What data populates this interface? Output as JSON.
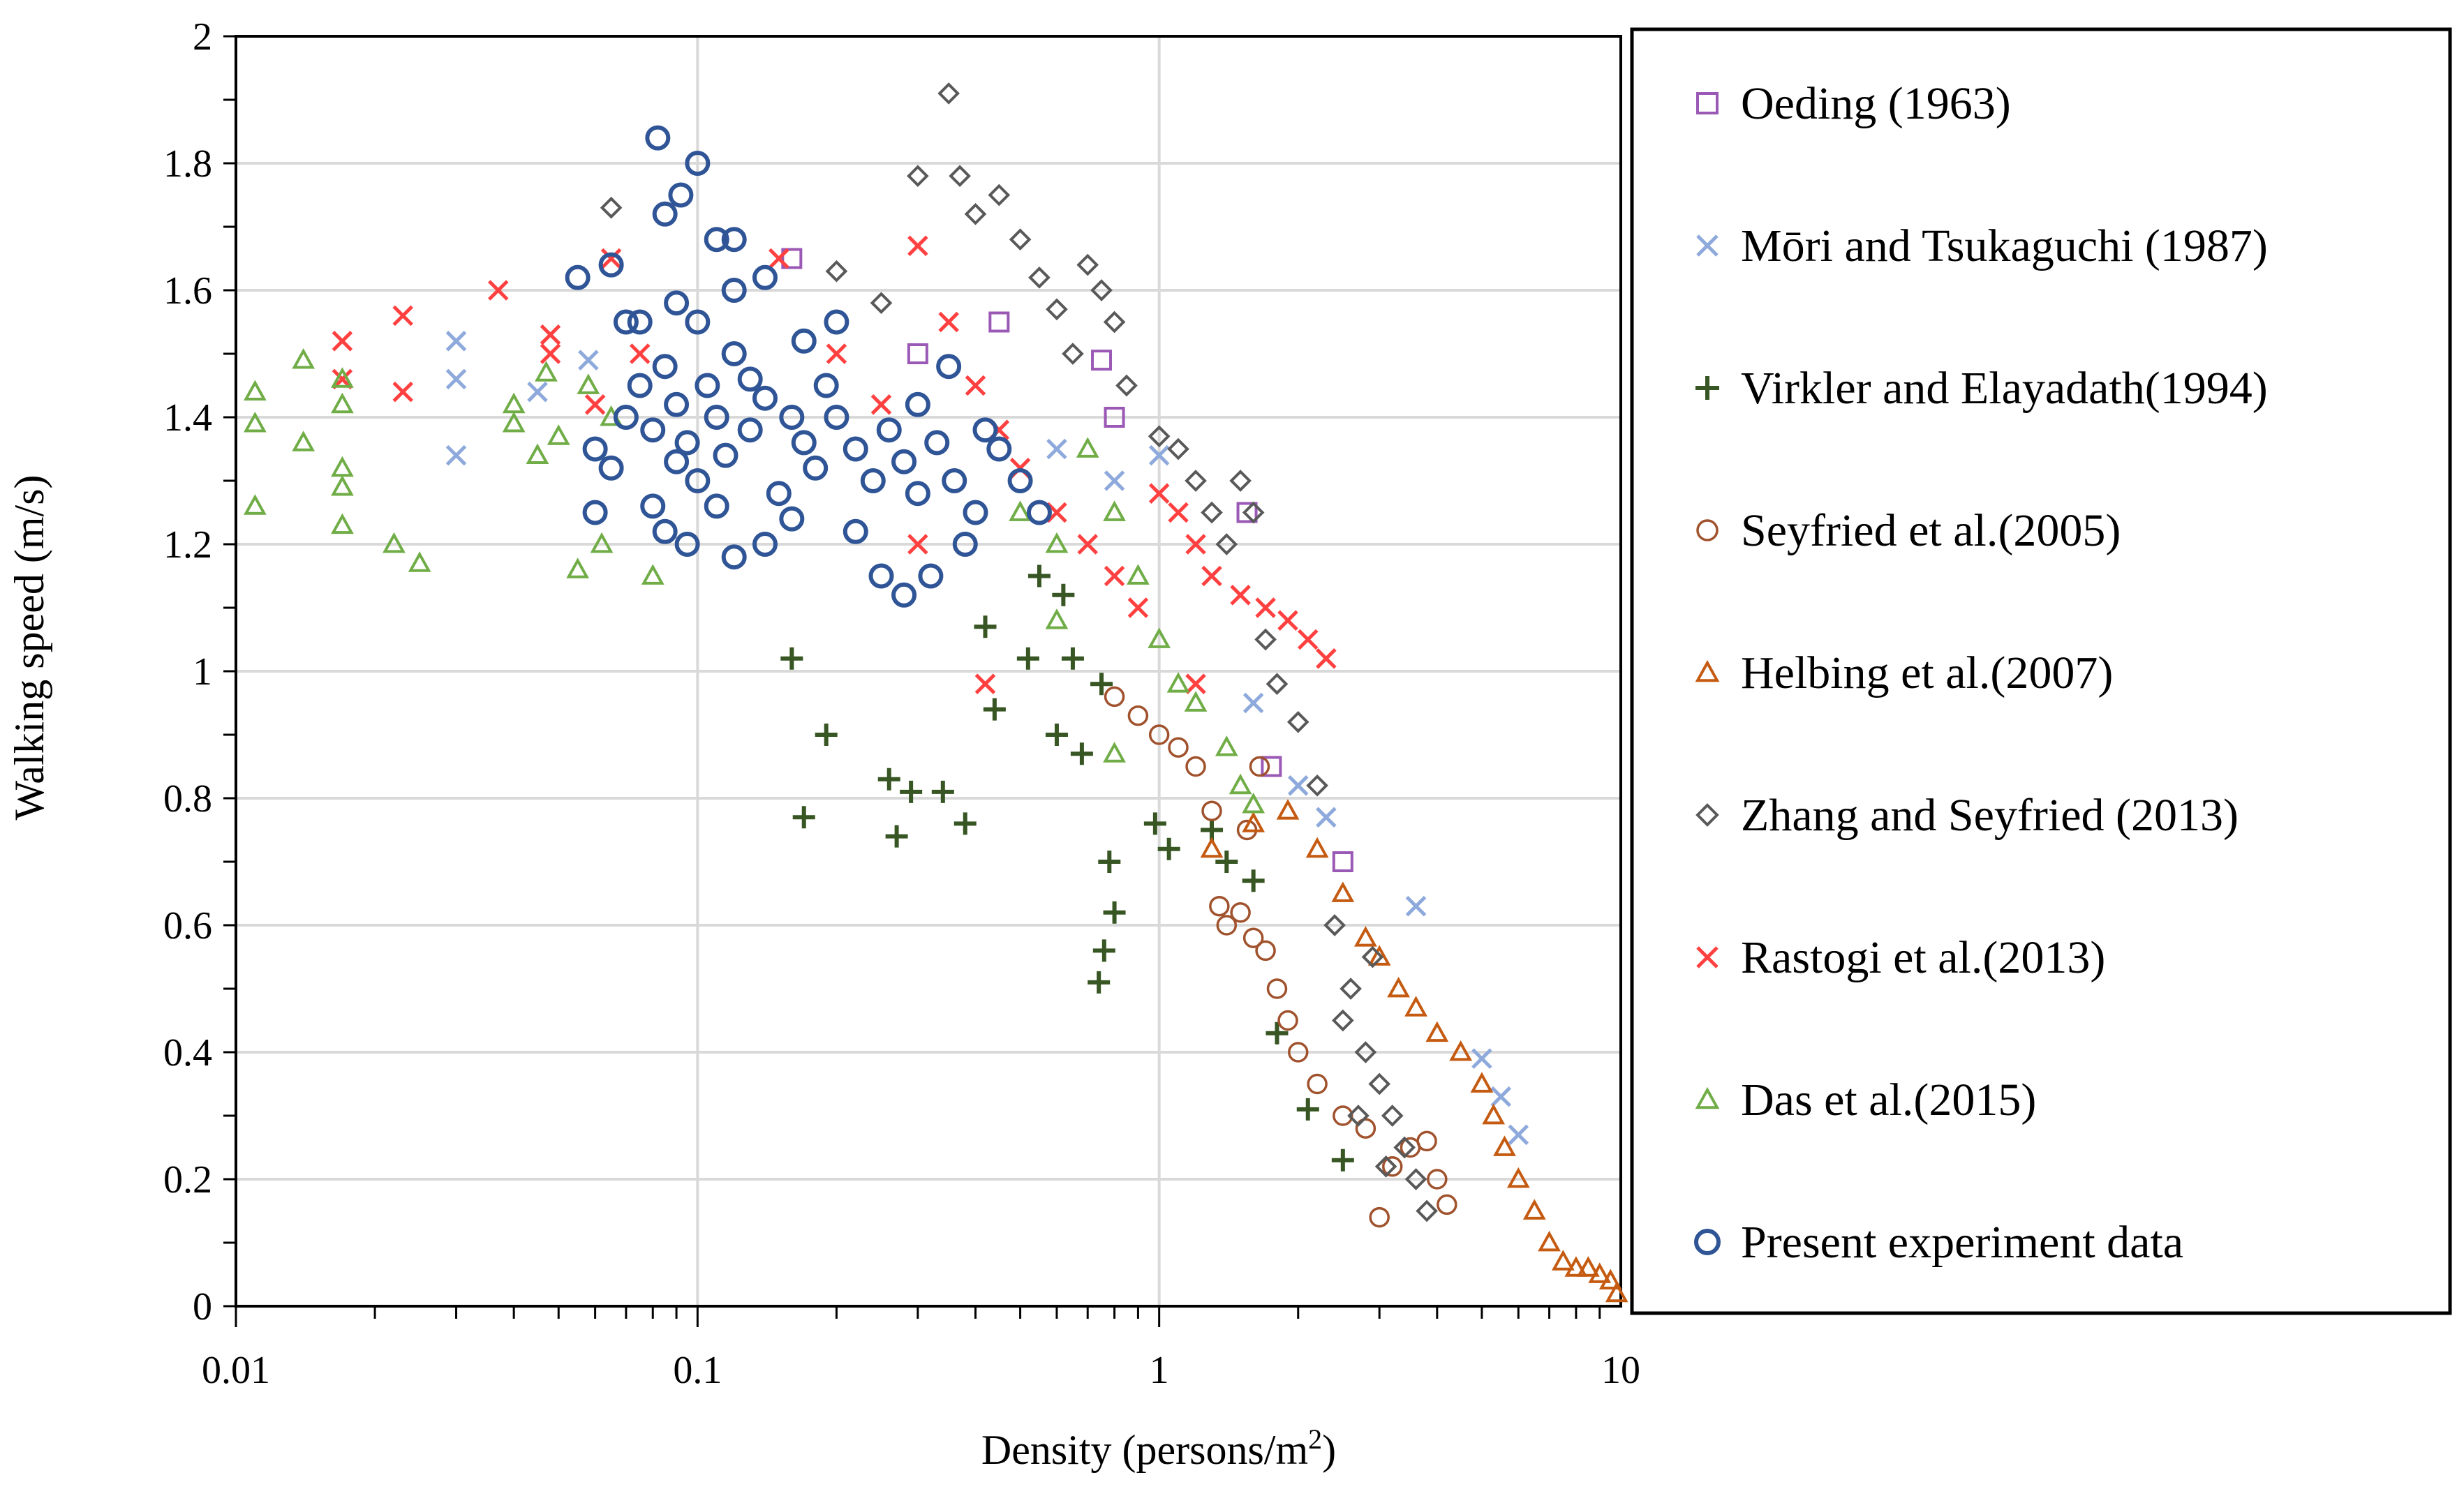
{
  "chart_data": {
    "type": "scatter",
    "title": "",
    "xlabel": "Density (persons/m",
    "xlabel_sup": "2",
    "xlabel_end": ")",
    "ylabel": "Walking speed (m/s)",
    "xscale": "log",
    "xlim": [
      0.01,
      10
    ],
    "ylim": [
      0,
      2
    ],
    "x_ticks": [
      "0.01",
      "0.1",
      "1",
      "10"
    ],
    "y_ticks": [
      "0",
      "0.2",
      "0.4",
      "0.6",
      "0.8",
      "1",
      "1.2",
      "1.4",
      "1.6",
      "1.8",
      "2"
    ],
    "grid": true,
    "legend_position": "right",
    "series": [
      {
        "name": "Oeding (1963)",
        "marker": "square",
        "color": "#9B59B6",
        "points": [
          [
            0.16,
            1.65
          ],
          [
            0.3,
            1.5
          ],
          [
            0.45,
            1.55
          ],
          [
            0.75,
            1.49
          ],
          [
            0.8,
            1.4
          ],
          [
            1.55,
            1.25
          ],
          [
            1.75,
            0.85
          ],
          [
            2.5,
            0.7
          ]
        ]
      },
      {
        "name": "Mōri and Tsukaguchi (1987)",
        "marker": "x",
        "color": "#8EA9DB",
        "points": [
          [
            0.03,
            1.52
          ],
          [
            0.03,
            1.46
          ],
          [
            0.03,
            1.34
          ],
          [
            0.045,
            1.44
          ],
          [
            0.058,
            1.49
          ],
          [
            0.6,
            1.35
          ],
          [
            0.8,
            1.3
          ],
          [
            1.0,
            1.34
          ],
          [
            1.6,
            0.95
          ],
          [
            2.0,
            0.82
          ],
          [
            2.3,
            0.77
          ],
          [
            3.6,
            0.63
          ],
          [
            5.0,
            0.39
          ],
          [
            5.5,
            0.33
          ],
          [
            6.0,
            0.27
          ]
        ]
      },
      {
        "name": "Virkler and Elayadath(1994)",
        "marker": "plus",
        "color": "#375623",
        "points": [
          [
            0.16,
            1.02
          ],
          [
            0.17,
            0.77
          ],
          [
            0.19,
            0.9
          ],
          [
            0.26,
            0.83
          ],
          [
            0.27,
            0.74
          ],
          [
            0.29,
            0.81
          ],
          [
            0.34,
            0.81
          ],
          [
            0.38,
            0.76
          ],
          [
            0.42,
            1.07
          ],
          [
            0.44,
            0.94
          ],
          [
            0.52,
            1.02
          ],
          [
            0.6,
            0.9
          ],
          [
            0.65,
            1.02
          ],
          [
            0.68,
            0.87
          ],
          [
            0.75,
            0.98
          ],
          [
            0.78,
            0.7
          ],
          [
            0.8,
            0.62
          ],
          [
            0.76,
            0.56
          ],
          [
            0.74,
            0.51
          ],
          [
            0.98,
            0.76
          ],
          [
            1.05,
            0.72
          ],
          [
            1.3,
            0.75
          ],
          [
            1.4,
            0.7
          ],
          [
            1.6,
            0.67
          ],
          [
            1.8,
            0.43
          ],
          [
            2.1,
            0.31
          ],
          [
            2.5,
            0.23
          ],
          [
            0.55,
            1.15
          ],
          [
            0.62,
            1.12
          ]
        ]
      },
      {
        "name": "Seyfried et al.(2005)",
        "marker": "circle-small",
        "color": "#A0522D",
        "points": [
          [
            0.8,
            0.96
          ],
          [
            0.9,
            0.93
          ],
          [
            1.0,
            0.9
          ],
          [
            1.1,
            0.88
          ],
          [
            1.2,
            0.85
          ],
          [
            1.3,
            0.78
          ],
          [
            1.35,
            0.63
          ],
          [
            1.4,
            0.6
          ],
          [
            1.5,
            0.62
          ],
          [
            1.6,
            0.58
          ],
          [
            1.7,
            0.56
          ],
          [
            1.8,
            0.5
          ],
          [
            1.9,
            0.45
          ],
          [
            2.0,
            0.4
          ],
          [
            2.2,
            0.35
          ],
          [
            2.5,
            0.3
          ],
          [
            2.8,
            0.28
          ],
          [
            3.0,
            0.14
          ],
          [
            3.2,
            0.22
          ],
          [
            3.5,
            0.25
          ],
          [
            3.8,
            0.26
          ],
          [
            4.0,
            0.2
          ],
          [
            4.2,
            0.16
          ],
          [
            1.55,
            0.75
          ],
          [
            1.65,
            0.85
          ]
        ]
      },
      {
        "name": "Helbing et al.(2007)",
        "marker": "triangle",
        "color": "#C55A11",
        "points": [
          [
            1.3,
            0.72
          ],
          [
            1.6,
            0.76
          ],
          [
            1.9,
            0.78
          ],
          [
            2.2,
            0.72
          ],
          [
            2.5,
            0.65
          ],
          [
            2.8,
            0.58
          ],
          [
            3.0,
            0.55
          ],
          [
            3.3,
            0.5
          ],
          [
            3.6,
            0.47
          ],
          [
            4.0,
            0.43
          ],
          [
            4.5,
            0.4
          ],
          [
            5.0,
            0.35
          ],
          [
            5.3,
            0.3
          ],
          [
            5.6,
            0.25
          ],
          [
            6.0,
            0.2
          ],
          [
            6.5,
            0.15
          ],
          [
            7.0,
            0.1
          ],
          [
            7.5,
            0.07
          ],
          [
            8.0,
            0.06
          ],
          [
            8.5,
            0.06
          ],
          [
            9.0,
            0.05
          ],
          [
            9.5,
            0.04
          ],
          [
            9.8,
            0.02
          ]
        ]
      },
      {
        "name": "Zhang and Seyfried (2013)",
        "marker": "diamond",
        "color": "#595959",
        "points": [
          [
            0.065,
            1.73
          ],
          [
            0.2,
            1.63
          ],
          [
            0.25,
            1.58
          ],
          [
            0.3,
            1.78
          ],
          [
            0.35,
            1.91
          ],
          [
            0.37,
            1.78
          ],
          [
            0.4,
            1.72
          ],
          [
            0.45,
            1.75
          ],
          [
            0.5,
            1.68
          ],
          [
            0.55,
            1.62
          ],
          [
            0.6,
            1.57
          ],
          [
            0.65,
            1.5
          ],
          [
            0.7,
            1.64
          ],
          [
            0.75,
            1.6
          ],
          [
            0.8,
            1.55
          ],
          [
            0.85,
            1.45
          ],
          [
            1.0,
            1.37
          ],
          [
            1.1,
            1.35
          ],
          [
            1.2,
            1.3
          ],
          [
            1.3,
            1.25
          ],
          [
            1.4,
            1.2
          ],
          [
            1.5,
            1.3
          ],
          [
            1.6,
            1.25
          ],
          [
            1.7,
            1.05
          ],
          [
            1.8,
            0.98
          ],
          [
            2.0,
            0.92
          ],
          [
            2.2,
            0.82
          ],
          [
            2.4,
            0.6
          ],
          [
            2.6,
            0.5
          ],
          [
            2.8,
            0.4
          ],
          [
            3.0,
            0.35
          ],
          [
            3.2,
            0.3
          ],
          [
            3.4,
            0.25
          ],
          [
            3.6,
            0.2
          ],
          [
            3.8,
            0.15
          ],
          [
            2.5,
            0.45
          ],
          [
            2.7,
            0.3
          ],
          [
            3.1,
            0.22
          ],
          [
            2.9,
            0.55
          ]
        ]
      },
      {
        "name": "Rastogi  et al.(2013)",
        "marker": "x",
        "color": "#FF4040",
        "points": [
          [
            0.017,
            1.52
          ],
          [
            0.017,
            1.46
          ],
          [
            0.023,
            1.56
          ],
          [
            0.023,
            1.44
          ],
          [
            0.037,
            1.6
          ],
          [
            0.048,
            1.53
          ],
          [
            0.048,
            1.5
          ],
          [
            0.06,
            1.42
          ],
          [
            0.065,
            1.65
          ],
          [
            0.075,
            1.5
          ],
          [
            0.15,
            1.65
          ],
          [
            0.2,
            1.5
          ],
          [
            0.25,
            1.42
          ],
          [
            0.3,
            1.67
          ],
          [
            0.35,
            1.55
          ],
          [
            0.4,
            1.45
          ],
          [
            0.45,
            1.38
          ],
          [
            0.5,
            1.32
          ],
          [
            0.6,
            1.25
          ],
          [
            0.7,
            1.2
          ],
          [
            0.8,
            1.15
          ],
          [
            0.9,
            1.1
          ],
          [
            1.0,
            1.28
          ],
          [
            1.1,
            1.25
          ],
          [
            1.2,
            1.2
          ],
          [
            1.3,
            1.15
          ],
          [
            1.5,
            1.12
          ],
          [
            1.7,
            1.1
          ],
          [
            1.9,
            1.08
          ],
          [
            2.1,
            1.05
          ],
          [
            2.3,
            1.02
          ],
          [
            0.42,
            0.98
          ],
          [
            1.2,
            0.98
          ],
          [
            0.3,
            1.2
          ]
        ]
      },
      {
        "name": "Das et al.(2015)",
        "marker": "triangle",
        "color": "#70AD47",
        "points": [
          [
            0.011,
            1.44
          ],
          [
            0.011,
            1.39
          ],
          [
            0.011,
            1.26
          ],
          [
            0.014,
            1.49
          ],
          [
            0.014,
            1.36
          ],
          [
            0.017,
            1.46
          ],
          [
            0.017,
            1.42
          ],
          [
            0.017,
            1.32
          ],
          [
            0.017,
            1.29
          ],
          [
            0.017,
            1.23
          ],
          [
            0.022,
            1.2
          ],
          [
            0.025,
            1.17
          ],
          [
            0.04,
            1.42
          ],
          [
            0.04,
            1.39
          ],
          [
            0.045,
            1.34
          ],
          [
            0.047,
            1.47
          ],
          [
            0.05,
            1.37
          ],
          [
            0.055,
            1.16
          ],
          [
            0.058,
            1.45
          ],
          [
            0.062,
            1.2
          ],
          [
            0.065,
            1.4
          ],
          [
            0.08,
            1.15
          ],
          [
            0.5,
            1.25
          ],
          [
            0.6,
            1.2
          ],
          [
            0.7,
            1.35
          ],
          [
            0.8,
            1.25
          ],
          [
            0.9,
            1.15
          ],
          [
            1.0,
            1.05
          ],
          [
            1.1,
            0.98
          ],
          [
            1.2,
            0.95
          ],
          [
            1.4,
            0.88
          ],
          [
            1.5,
            0.82
          ],
          [
            1.6,
            0.79
          ],
          [
            0.6,
            1.08
          ],
          [
            0.8,
            0.87
          ]
        ]
      },
      {
        "name": "Present experiment data",
        "marker": "circle",
        "color": "#2F5597",
        "points": [
          [
            0.082,
            1.84
          ],
          [
            0.1,
            1.8
          ],
          [
            0.092,
            1.75
          ],
          [
            0.085,
            1.72
          ],
          [
            0.11,
            1.68
          ],
          [
            0.12,
            1.68
          ],
          [
            0.055,
            1.62
          ],
          [
            0.065,
            1.64
          ],
          [
            0.075,
            1.55
          ],
          [
            0.09,
            1.58
          ],
          [
            0.1,
            1.55
          ],
          [
            0.12,
            1.6
          ],
          [
            0.14,
            1.62
          ],
          [
            0.06,
            1.35
          ],
          [
            0.065,
            1.32
          ],
          [
            0.07,
            1.4
          ],
          [
            0.075,
            1.45
          ],
          [
            0.08,
            1.38
          ],
          [
            0.085,
            1.48
          ],
          [
            0.09,
            1.42
          ],
          [
            0.095,
            1.36
          ],
          [
            0.1,
            1.3
          ],
          [
            0.105,
            1.45
          ],
          [
            0.11,
            1.4
          ],
          [
            0.115,
            1.34
          ],
          [
            0.12,
            1.5
          ],
          [
            0.13,
            1.38
          ],
          [
            0.14,
            1.43
          ],
          [
            0.15,
            1.28
          ],
          [
            0.16,
            1.4
          ],
          [
            0.17,
            1.36
          ],
          [
            0.18,
            1.32
          ],
          [
            0.19,
            1.45
          ],
          [
            0.2,
            1.4
          ],
          [
            0.22,
            1.35
          ],
          [
            0.24,
            1.3
          ],
          [
            0.26,
            1.38
          ],
          [
            0.28,
            1.33
          ],
          [
            0.3,
            1.28
          ],
          [
            0.33,
            1.36
          ],
          [
            0.36,
            1.3
          ],
          [
            0.4,
            1.25
          ],
          [
            0.45,
            1.35
          ],
          [
            0.5,
            1.3
          ],
          [
            0.55,
            1.25
          ],
          [
            0.08,
            1.26
          ],
          [
            0.085,
            1.22
          ],
          [
            0.095,
            1.2
          ],
          [
            0.06,
            1.25
          ],
          [
            0.12,
            1.18
          ],
          [
            0.14,
            1.2
          ],
          [
            0.25,
            1.15
          ],
          [
            0.28,
            1.12
          ],
          [
            0.32,
            1.15
          ],
          [
            0.2,
            1.55
          ],
          [
            0.17,
            1.52
          ],
          [
            0.3,
            1.42
          ],
          [
            0.07,
            1.55
          ],
          [
            0.35,
            1.48
          ],
          [
            0.42,
            1.38
          ],
          [
            0.16,
            1.24
          ],
          [
            0.22,
            1.22
          ],
          [
            0.09,
            1.33
          ],
          [
            0.13,
            1.46
          ],
          [
            0.38,
            1.2
          ],
          [
            0.11,
            1.26
          ]
        ]
      }
    ]
  }
}
